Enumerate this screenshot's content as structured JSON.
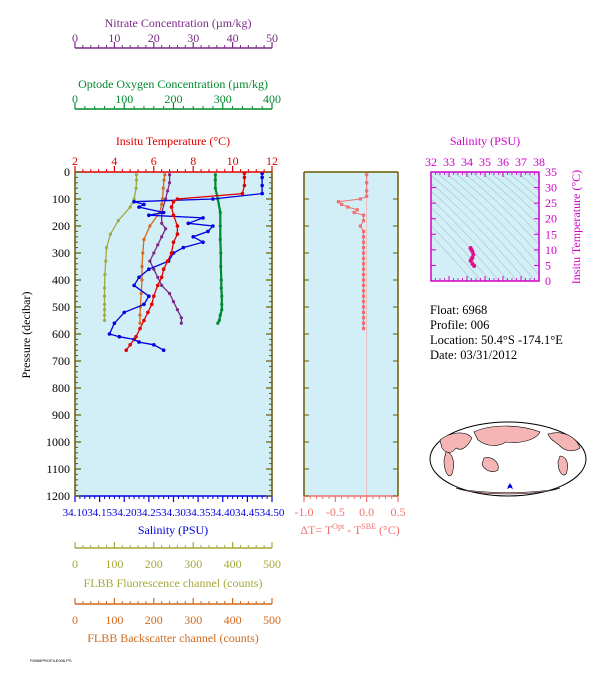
{
  "colors": {
    "nitrate": "#7a2a86",
    "oxygen": "#008a2e",
    "temperature": "#e00000",
    "salinity": "#0000e0",
    "fluorescence": "#a5a83a",
    "backscatter": "#d2691e",
    "delta": "#f07070",
    "ts_axis": "#d000c8",
    "plot_bg": "#d2eef6",
    "frame": "#6b5a00"
  },
  "info": {
    "float": "Float:  6968",
    "profile": "Profile:  006",
    "location": "Location:  50.4°S  -174.1°E",
    "date": "Date:  03/31/2012"
  },
  "footer": "F6968PROFILE006.PS",
  "chart_data": [
    {
      "type": "line",
      "name": "profile",
      "ylabel": "Pressure (decibar)",
      "ylim": [
        0,
        1200
      ],
      "yticks": [
        "0",
        "100",
        "200",
        "300",
        "400",
        "500",
        "600",
        "700",
        "800",
        "900",
        "1000",
        "1100",
        "1200"
      ],
      "axes": {
        "nitrate": {
          "label": "Nitrate Concentration (µm/kg)",
          "range": [
            0,
            50
          ],
          "ticks": [
            "0",
            "10",
            "20",
            "30",
            "40",
            "50"
          ]
        },
        "oxygen": {
          "label": "Optode Oxygen Concentration (µm/kg)",
          "range": [
            0,
            400
          ],
          "ticks": [
            "0",
            "100",
            "200",
            "300",
            "400"
          ]
        },
        "temperature": {
          "label": "Insitu Temperature (°C)",
          "range": [
            2,
            12
          ],
          "ticks": [
            "2",
            "4",
            "6",
            "8",
            "10",
            "12"
          ]
        },
        "salinity": {
          "label": "Salinity (PSU)",
          "range": [
            34.1,
            34.5
          ],
          "ticks": [
            "34.10",
            "34.15",
            "34.20",
            "34.25",
            "34.30",
            "34.35",
            "34.40",
            "34.45",
            "34.50"
          ]
        },
        "fluorescence": {
          "label": "FLBB Fluorescence channel (counts)",
          "range": [
            0,
            500
          ],
          "ticks": [
            "0",
            "100",
            "200",
            "300",
            "400",
            "500"
          ]
        },
        "backscatter": {
          "label": "FLBB Backscatter channel (counts)",
          "range": [
            0,
            500
          ],
          "ticks": [
            "0",
            "100",
            "200",
            "300",
            "400",
            "500"
          ]
        }
      },
      "series": [
        {
          "key": "temperature",
          "x": [
            10.6,
            10.6,
            10.6,
            10.5,
            7.2,
            7.0,
            6.9,
            7.0,
            7.2,
            7.2,
            7.0,
            6.9,
            6.7,
            6.5,
            6.4,
            6.2,
            6.0,
            5.9,
            5.7,
            5.5,
            5.3,
            5.1,
            4.8,
            4.6
          ],
          "y": [
            5,
            20,
            50,
            80,
            100,
            110,
            130,
            160,
            200,
            230,
            260,
            300,
            330,
            360,
            390,
            420,
            460,
            490,
            520,
            550,
            580,
            610,
            640,
            660
          ]
        },
        {
          "key": "salinity",
          "x": [
            34.48,
            34.48,
            34.48,
            34.48,
            34.38,
            34.22,
            34.24,
            34.23,
            34.28,
            34.25,
            34.36,
            34.33,
            34.38,
            34.37,
            34.34,
            34.36,
            34.32,
            34.3,
            34.29,
            34.25,
            34.23,
            34.22,
            34.25,
            34.24,
            34.2,
            34.18,
            34.17,
            34.19,
            34.22,
            34.23,
            34.26,
            34.28
          ],
          "y": [
            5,
            20,
            50,
            80,
            100,
            110,
            120,
            130,
            150,
            160,
            170,
            190,
            200,
            220,
            240,
            260,
            280,
            300,
            330,
            360,
            390,
            420,
            460,
            490,
            520,
            560,
            600,
            610,
            620,
            630,
            640,
            660
          ]
        },
        {
          "key": "oxygen",
          "x": [
            285,
            285,
            285,
            290,
            295,
            295,
            295,
            296,
            296,
            297,
            297,
            298,
            298,
            298,
            295,
            293,
            290
          ],
          "y": [
            10,
            30,
            60,
            100,
            150,
            200,
            250,
            300,
            350,
            400,
            430,
            460,
            490,
            510,
            530,
            550,
            560
          ]
        },
        {
          "key": "nitrate",
          "x": [
            24,
            24,
            23.5,
            23,
            22,
            22,
            23,
            22,
            21,
            20,
            19,
            20,
            21,
            22,
            24,
            25,
            26,
            27,
            27
          ],
          "y": [
            10,
            40,
            70,
            100,
            150,
            190,
            210,
            240,
            270,
            300,
            330,
            360,
            390,
            420,
            450,
            480,
            510,
            540,
            560
          ]
        },
        {
          "key": "fluorescence",
          "x": [
            156,
            156,
            155,
            150,
            140,
            110,
            90,
            80,
            78,
            76,
            75,
            75,
            75,
            75,
            75,
            75
          ],
          "y": [
            10,
            30,
            60,
            100,
            130,
            180,
            230,
            280,
            330,
            380,
            430,
            460,
            490,
            510,
            530,
            550
          ]
        },
        {
          "key": "backscatter",
          "x": [
            228,
            226,
            224,
            222,
            220,
            215,
            190,
            175,
            172,
            170,
            170,
            168,
            166,
            165,
            165
          ],
          "y": [
            10,
            30,
            60,
            100,
            120,
            150,
            200,
            250,
            300,
            350,
            400,
            450,
            500,
            530,
            560
          ]
        }
      ]
    },
    {
      "type": "scatter",
      "name": "delta",
      "xlabel": "ΔT= T^Opt - T^SBE (°C)",
      "xlim": [
        -1.0,
        0.5
      ],
      "ylim": [
        0,
        1200
      ],
      "xticks": [
        "-1.0",
        "-0.5",
        "0.0",
        "0.5"
      ],
      "x": [
        0.0,
        0.0,
        0.0,
        0.0,
        -0.1,
        -0.45,
        -0.4,
        -0.3,
        -0.15,
        -0.2,
        -0.05,
        -0.05,
        -0.1,
        -0.05,
        -0.05,
        -0.05,
        -0.05,
        -0.05,
        -0.05,
        -0.05,
        -0.05,
        -0.05,
        -0.05,
        -0.05,
        -0.05,
        -0.05,
        -0.05,
        -0.05,
        -0.05,
        -0.05,
        -0.05,
        -0.05
      ],
      "y": [
        10,
        40,
        70,
        90,
        100,
        110,
        120,
        130,
        140,
        150,
        160,
        180,
        200,
        220,
        240,
        260,
        280,
        300,
        320,
        340,
        360,
        380,
        400,
        420,
        440,
        460,
        480,
        500,
        520,
        540,
        560,
        580
      ]
    },
    {
      "type": "scatter",
      "name": "ts",
      "xlabel": "Salinity (PSU)",
      "ylabel": "Insitu Temperature (°C)",
      "xlim": [
        32,
        38
      ],
      "ylim": [
        0,
        35
      ],
      "xticks": [
        "32",
        "33",
        "34",
        "35",
        "36",
        "37",
        "38"
      ],
      "yticks": [
        "0",
        "5",
        "10",
        "15",
        "20",
        "25",
        "30",
        "35"
      ],
      "x": [
        34.4,
        34.3,
        34.2,
        34.25,
        34.3,
        34.35,
        34.3,
        34.25,
        34.2,
        34.2
      ],
      "y": [
        4.8,
        5.5,
        6.5,
        7.0,
        7.5,
        8.5,
        9.5,
        10.0,
        10.5,
        10.6
      ]
    }
  ],
  "map": {
    "float_marker": "star"
  }
}
